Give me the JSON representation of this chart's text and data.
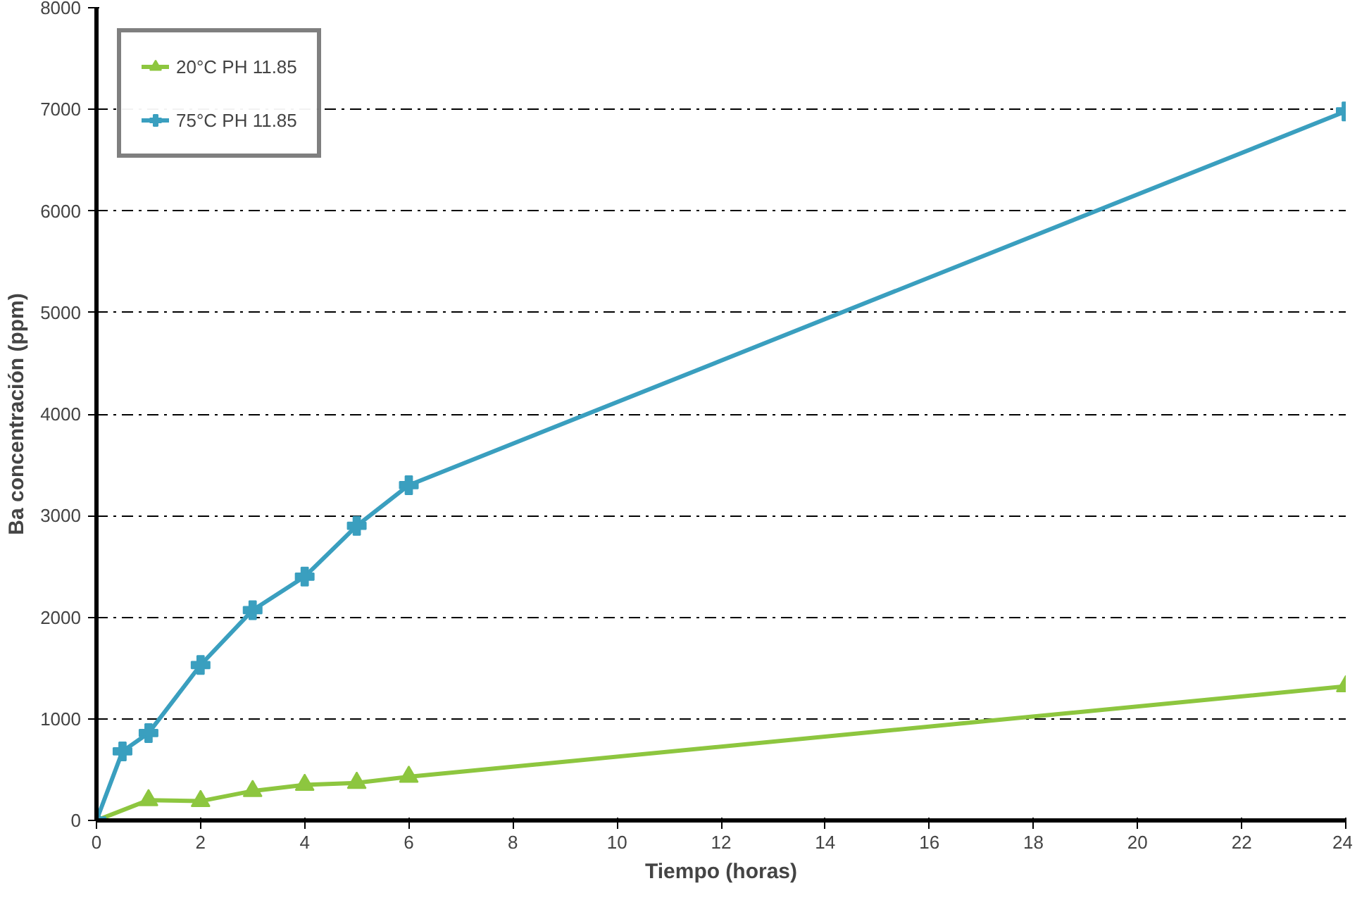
{
  "chart_data": {
    "type": "line",
    "xlabel": "Tiempo (horas)",
    "ylabel": "Ba concentración (ppm)",
    "xlim": [
      0,
      24
    ],
    "xticks": [
      0,
      2,
      4,
      6,
      8,
      10,
      12,
      14,
      16,
      18,
      20,
      22,
      24
    ],
    "ylim": [
      0,
      8000
    ],
    "yticks": [
      0,
      1000,
      2000,
      3000,
      4000,
      5000,
      6000,
      7000,
      8000
    ],
    "grid": "y",
    "legend": "top left",
    "line_style": "solid",
    "series": [
      {
        "name": "20°C PH 11.85",
        "color": "#8dc63f",
        "marker": "triangle",
        "x": [
          0,
          1,
          2,
          3,
          4,
          5,
          6,
          24
        ],
        "values": [
          0,
          200,
          190,
          290,
          350,
          370,
          430,
          1320
        ]
      },
      {
        "name": "75°C PH 11.85",
        "color": "#3a9fbf",
        "marker": "cross",
        "x": [
          0,
          0.5,
          1,
          2,
          3,
          4,
          5,
          6,
          24
        ],
        "values": [
          0,
          680,
          860,
          1530,
          2070,
          2400,
          2900,
          3300,
          6980
        ]
      }
    ]
  }
}
